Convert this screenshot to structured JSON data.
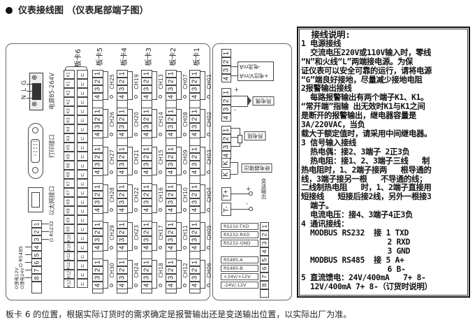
{
  "title": "仪表接线图 （仪表尾部端子图）",
  "caption": "板卡 6 的位置，根据实际订货时的需求确定是报警输出还是变送输出位置，以实际出厂为准。",
  "left_panel": {
    "power": {
      "label": "电源85-264V",
      "terminals": [
        "N",
        "L",
        "G"
      ]
    },
    "print_port": "打印接口",
    "ethernet_port": "以太网接口",
    "comm_terminals": [
      "1",
      "2",
      "3",
      "4",
      "5",
      "6",
      "7",
      "8"
    ],
    "rs232_label": "O RS232",
    "rs485_label": "O RS485",
    "feed_12v": "O馈电12V",
    "feed_24v": "O馈电24V",
    "board6": {
      "label": "板卡6",
      "cells": [
        "K1",
        "K1",
        "K2",
        "K2",
        "K3",
        "K3",
        "K4",
        "K4",
        "K5",
        "K5",
        "K6",
        "K6",
        "K7",
        "K7",
        "K8",
        "K8",
        "K9",
        "K9",
        "K10",
        "K10",
        "K11",
        "K11",
        "K12",
        "K12"
      ]
    },
    "terminal_digits": [
      "1",
      "2",
      "3",
      "4"
    ],
    "boards": [
      {
        "label": "板卡5",
        "channels": [
          "CH25",
          "CH26",
          "CH27",
          "CH28",
          "CH29",
          "CH30"
        ]
      },
      {
        "label": "板卡4",
        "channels": [
          "CH19",
          "CH20",
          "CH21",
          "CH22",
          "CH23",
          "CH24"
        ]
      },
      {
        "label": "板卡3",
        "channels": [
          "CH13",
          "CH14",
          "CH15",
          "CH16",
          "CH17",
          "CH18"
        ]
      },
      {
        "label": "板卡2",
        "channels": [
          "CH07",
          "CH08",
          "CH09",
          "CH10",
          "CH11",
          "CH12"
        ]
      },
      {
        "label": "板卡1",
        "channels": [
          "CH01",
          "CH02",
          "CH03",
          "CH04",
          "CH05",
          "CH06"
        ]
      }
    ]
  },
  "middle_panel": {
    "current_minus": "-电流mA",
    "voltage_plus": "+电压V/mA",
    "thermocouple": "热电偶",
    "tc_plus": "+",
    "tc_minus": "-",
    "rtd": "热电阻",
    "relay": "继电器输出",
    "relay_terminal": "K",
    "t_plus": "T+",
    "t_minus": "T-",
    "out_plus": "+",
    "out_minus": "-",
    "transmit_output": "变送输出",
    "comm_rows": [
      {
        "label": "RS232-TXD",
        "num": "1"
      },
      {
        "label": "RS232-RXD",
        "num": "2"
      },
      {
        "label": "RS232-GND",
        "num": "3"
      },
      {
        "label": "",
        "num": "4"
      },
      {
        "label": "RS485-A",
        "num": "5"
      },
      {
        "label": "RS485-B",
        "num": "6"
      },
      {
        "label": "+24V/+12V",
        "num": "7"
      },
      {
        "label": "-24V/-12V",
        "num": "8"
      }
    ]
  },
  "notes": [
    "  接线说明:",
    "",
    "1 电源接线",
    "  交流电压220V或110V输入时，零线",
    "“N”和火线“L”两端接电源。为保",
    "证仪表可以安全可靠的运行，请将电源",
    "“G”端良好接地，尽量减少接地电阻",
    "2报警输出接线",
    "  每路报警输出有两个端子K1、K1。",
    "“常开端”指输 出无效时K1与K1之间",
    "是断开的报警输出，继电器容量是",
    "3A/220VAC，当负",
    "载大于额定值时，请采用中间继电器。",
    "3 信号输入接线",
    "  热电偶：接2、3端子 2正3负",
    "  热电阻：接1、2、3端子三线   制",
    "热电阻时，1、2端子接两   根导通的",
    "线，3端子接另一根   不导通的线；",
    "二线制热电阻   时，1、2端子直接用",
    "短接线   短接后接2线，另外一根接3",
    "  端子。",
    "  电流电压：接4、3端子4正3负",
    "4 通讯接线：",
    "  MODBUS RS232  接 1 TXD",
    "                   2 RXD",
    "                   3 GND",
    "  MODBUS RS485  接 5 A+",
    "                   6 B-",
    "5 直流馈电：24V/400mA   7+ 8-",
    "  12V/400mA 7+ 8-（订货时说明）"
  ]
}
